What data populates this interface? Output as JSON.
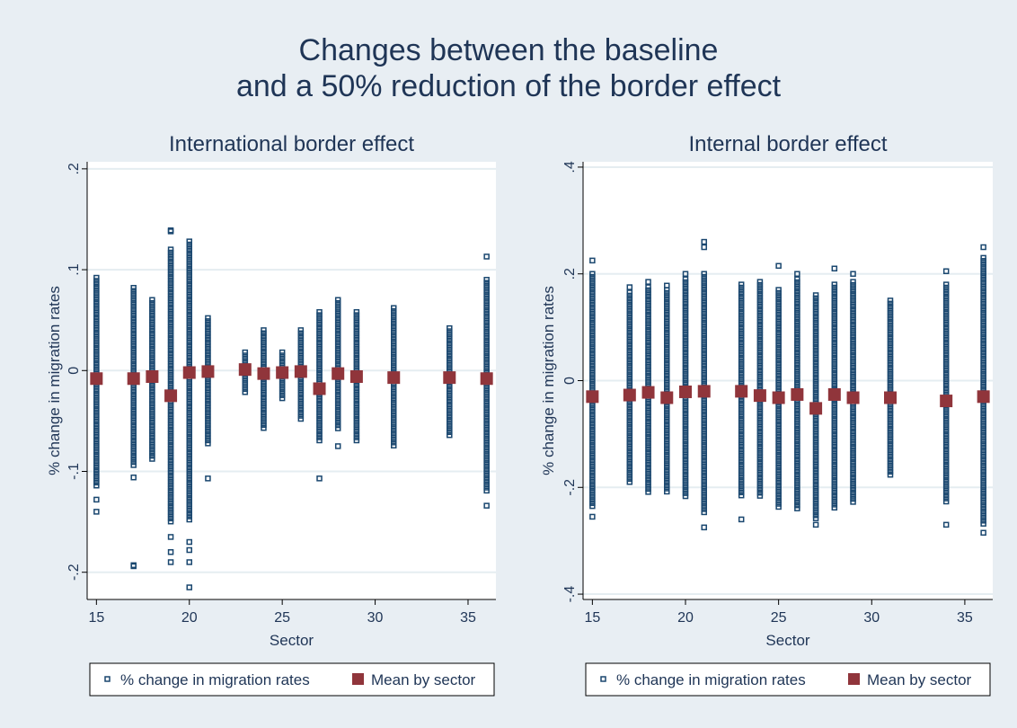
{
  "figure": {
    "title_line1": "Changes between the baseline",
    "title_line2": "and a 50% reduction of the border effect"
  },
  "colors": {
    "outer_bg": "#e8eef3",
    "plot_bg": "#ffffff",
    "grid": "#e5edf1",
    "scatter": "#1a476f",
    "mean": "#90353b",
    "text": "#1f3556"
  },
  "chart_data": [
    {
      "type": "scatter",
      "title": "International border effect",
      "xlabel": "Sector",
      "ylabel": "% change in migration rates",
      "xlim": [
        14.5,
        36.5
      ],
      "ylim": [
        -0.227,
        0.207
      ],
      "xticks": [
        15,
        20,
        25,
        30,
        35
      ],
      "xtick_labels": [
        "15",
        "20",
        "25",
        "30",
        "35"
      ],
      "yticks": [
        -0.2,
        -0.1,
        0,
        0.1,
        0.2
      ],
      "ytick_labels": [
        "-.2",
        "-.1",
        "0",
        ".1",
        ".2"
      ],
      "grid": true,
      "legend": [
        "% change in migration rates",
        "Mean by sector"
      ],
      "legend_position": "bottom",
      "series": [
        {
          "name": "% change in migration rates",
          "points": [
            {
              "x": 15,
              "ymin": -0.116,
              "ymax": 0.092,
              "outliers": [
                -0.128,
                -0.14
              ]
            },
            {
              "x": 17,
              "ymin": -0.096,
              "ymax": 0.082,
              "outliers": [
                -0.106,
                -0.193,
                -0.194
              ]
            },
            {
              "x": 18,
              "ymin": -0.09,
              "ymax": 0.07,
              "outliers": []
            },
            {
              "x": 19,
              "ymin": -0.15,
              "ymax": 0.12,
              "outliers": [
                0.139,
                0.138,
                -0.165,
                -0.18,
                -0.19
              ]
            },
            {
              "x": 20,
              "ymin": -0.15,
              "ymax": 0.128,
              "outliers": [
                -0.17,
                -0.178,
                -0.19,
                -0.215
              ]
            },
            {
              "x": 21,
              "ymin": -0.074,
              "ymax": 0.052,
              "outliers": [
                -0.107
              ]
            },
            {
              "x": 23,
              "ymin": -0.022,
              "ymax": 0.018,
              "outliers": []
            },
            {
              "x": 24,
              "ymin": -0.058,
              "ymax": 0.04,
              "outliers": []
            },
            {
              "x": 25,
              "ymin": -0.028,
              "ymax": 0.018,
              "outliers": []
            },
            {
              "x": 26,
              "ymin": -0.048,
              "ymax": 0.04,
              "outliers": []
            },
            {
              "x": 27,
              "ymin": -0.072,
              "ymax": 0.058,
              "outliers": [
                -0.107
              ]
            },
            {
              "x": 28,
              "ymin": -0.06,
              "ymax": 0.07,
              "outliers": [
                -0.075
              ]
            },
            {
              "x": 29,
              "ymin": -0.072,
              "ymax": 0.058,
              "outliers": []
            },
            {
              "x": 31,
              "ymin": -0.075,
              "ymax": 0.062,
              "outliers": []
            },
            {
              "x": 34,
              "ymin": -0.065,
              "ymax": 0.042,
              "outliers": []
            },
            {
              "x": 36,
              "ymin": -0.12,
              "ymax": 0.09,
              "outliers": [
                0.113,
                -0.134
              ]
            }
          ]
        },
        {
          "name": "Mean by sector",
          "points": [
            {
              "x": 15,
              "y": -0.008
            },
            {
              "x": 17,
              "y": -0.008
            },
            {
              "x": 18,
              "y": -0.006
            },
            {
              "x": 19,
              "y": -0.025
            },
            {
              "x": 20,
              "y": -0.002
            },
            {
              "x": 21,
              "y": -0.001
            },
            {
              "x": 23,
              "y": 0.001
            },
            {
              "x": 24,
              "y": -0.003
            },
            {
              "x": 25,
              "y": -0.002
            },
            {
              "x": 26,
              "y": -0.001
            },
            {
              "x": 27,
              "y": -0.018
            },
            {
              "x": 28,
              "y": -0.003
            },
            {
              "x": 29,
              "y": -0.006
            },
            {
              "x": 31,
              "y": -0.007
            },
            {
              "x": 34,
              "y": -0.007
            },
            {
              "x": 36,
              "y": -0.008
            }
          ]
        }
      ]
    },
    {
      "type": "scatter",
      "title": "Internal border effect",
      "xlabel": "Sector",
      "ylabel": "% change in migration rates",
      "xlim": [
        14.5,
        36.5
      ],
      "ylim": [
        -0.41,
        0.41
      ],
      "xticks": [
        15,
        20,
        25,
        30,
        35
      ],
      "xtick_labels": [
        "15",
        "20",
        "25",
        "30",
        "35"
      ],
      "yticks": [
        -0.4,
        -0.2,
        0,
        0.2,
        0.4
      ],
      "ytick_labels": [
        "-.4",
        "-.2",
        "0",
        ".2",
        ".4"
      ],
      "grid": true,
      "legend": [
        "% change in migration rates",
        "Mean by sector"
      ],
      "legend_position": "bottom",
      "series": [
        {
          "name": "% change in migration rates",
          "points": [
            {
              "x": 15,
              "ymin": -0.24,
              "ymax": 0.2,
              "outliers": [
                0.225,
                -0.255
              ]
            },
            {
              "x": 17,
              "ymin": -0.19,
              "ymax": 0.165,
              "outliers": [
                0.175
              ]
            },
            {
              "x": 18,
              "ymin": -0.21,
              "ymax": 0.175,
              "outliers": [
                0.185
              ]
            },
            {
              "x": 19,
              "ymin": -0.21,
              "ymax": 0.17,
              "outliers": [
                0.178
              ]
            },
            {
              "x": 20,
              "ymin": -0.22,
              "ymax": 0.19,
              "outliers": [
                0.2
              ]
            },
            {
              "x": 21,
              "ymin": -0.25,
              "ymax": 0.2,
              "outliers": [
                0.26,
                0.25,
                -0.275
              ]
            },
            {
              "x": 23,
              "ymin": -0.22,
              "ymax": 0.18,
              "outliers": [
                -0.26
              ]
            },
            {
              "x": 24,
              "ymin": -0.22,
              "ymax": 0.185,
              "outliers": []
            },
            {
              "x": 25,
              "ymin": -0.24,
              "ymax": 0.17,
              "outliers": [
                0.215
              ]
            },
            {
              "x": 26,
              "ymin": -0.24,
              "ymax": 0.19,
              "outliers": [
                0.2
              ]
            },
            {
              "x": 27,
              "ymin": -0.26,
              "ymax": 0.16,
              "outliers": [
                -0.27
              ]
            },
            {
              "x": 28,
              "ymin": -0.24,
              "ymax": 0.18,
              "outliers": [
                0.21
              ]
            },
            {
              "x": 29,
              "ymin": -0.23,
              "ymax": 0.185,
              "outliers": [
                0.2
              ]
            },
            {
              "x": 31,
              "ymin": -0.18,
              "ymax": 0.15,
              "outliers": []
            },
            {
              "x": 34,
              "ymin": -0.23,
              "ymax": 0.18,
              "outliers": [
                0.205,
                -0.27
              ]
            },
            {
              "x": 36,
              "ymin": -0.27,
              "ymax": 0.23,
              "outliers": [
                0.25,
                -0.285
              ]
            }
          ]
        },
        {
          "name": "Mean by sector",
          "points": [
            {
              "x": 15,
              "y": -0.03
            },
            {
              "x": 17,
              "y": -0.027
            },
            {
              "x": 18,
              "y": -0.022
            },
            {
              "x": 19,
              "y": -0.032
            },
            {
              "x": 20,
              "y": -0.021
            },
            {
              "x": 21,
              "y": -0.02
            },
            {
              "x": 23,
              "y": -0.02
            },
            {
              "x": 24,
              "y": -0.028
            },
            {
              "x": 25,
              "y": -0.032
            },
            {
              "x": 26,
              "y": -0.026
            },
            {
              "x": 27,
              "y": -0.052
            },
            {
              "x": 28,
              "y": -0.026
            },
            {
              "x": 29,
              "y": -0.032
            },
            {
              "x": 31,
              "y": -0.032
            },
            {
              "x": 34,
              "y": -0.038
            },
            {
              "x": 36,
              "y": -0.03
            }
          ]
        }
      ]
    }
  ]
}
